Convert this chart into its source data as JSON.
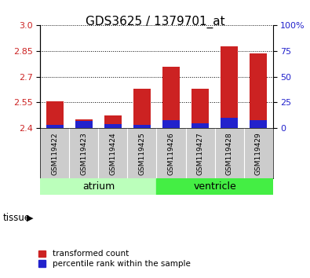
{
  "title": "GDS3625 / 1379701_at",
  "samples": [
    "GSM119422",
    "GSM119423",
    "GSM119424",
    "GSM119425",
    "GSM119426",
    "GSM119427",
    "GSM119428",
    "GSM119429"
  ],
  "transformed_counts": [
    2.556,
    2.452,
    2.476,
    2.628,
    2.757,
    2.63,
    2.878,
    2.836
  ],
  "percentile_ranks": [
    3,
    7,
    4,
    3,
    8,
    5,
    10,
    8
  ],
  "baseline": 2.4,
  "ylim_left": [
    2.4,
    3.0
  ],
  "ylim_right": [
    0,
    100
  ],
  "yticks_left": [
    2.4,
    2.55,
    2.7,
    2.85,
    3.0
  ],
  "yticks_right": [
    0,
    25,
    50,
    75,
    100
  ],
  "bar_color_red": "#cc2222",
  "bar_color_blue": "#2222cc",
  "tissue_groups": [
    {
      "label": "atrium",
      "start": 0,
      "end": 4,
      "color": "#bbffbb"
    },
    {
      "label": "ventricle",
      "start": 4,
      "end": 8,
      "color": "#44ee44"
    }
  ],
  "tissue_label": "tissue",
  "sample_bg_color": "#cccccc",
  "legend_labels": [
    "transformed count",
    "percentile rank within the sample"
  ],
  "bar_width": 0.6
}
